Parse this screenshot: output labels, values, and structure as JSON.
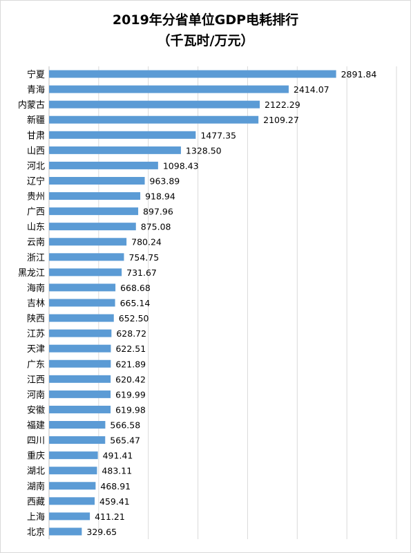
{
  "chart_data": {
    "type": "bar",
    "orientation": "horizontal",
    "title": "2019年分省单位GDP电耗排行",
    "subtitle": "（千瓦时/万元）",
    "categories": [
      "宁夏",
      "青海",
      "内蒙古",
      "新疆",
      "甘肃",
      "山西",
      "河北",
      "辽宁",
      "贵州",
      "广西",
      "山东",
      "云南",
      "浙江",
      "黑龙江",
      "海南",
      "吉林",
      "陕西",
      "江苏",
      "天津",
      "广东",
      "江西",
      "河南",
      "安徽",
      "福建",
      "四川",
      "重庆",
      "湖北",
      "湖南",
      "西藏",
      "上海",
      "北京"
    ],
    "values": [
      2891.84,
      2414.07,
      2122.29,
      2109.27,
      1477.35,
      1328.5,
      1098.43,
      963.89,
      918.94,
      897.96,
      875.08,
      780.24,
      754.75,
      731.67,
      668.68,
      665.14,
      652.5,
      628.72,
      622.51,
      621.89,
      620.42,
      619.99,
      619.98,
      566.58,
      565.47,
      491.41,
      483.11,
      468.91,
      459.41,
      411.21,
      329.65
    ],
    "value_labels": [
      "2891.84",
      "2414.07",
      "2122.29",
      "2109.27",
      "1477.35",
      "1328.50",
      "1098.43",
      "963.89",
      "918.94",
      "897.96",
      "875.08",
      "780.24",
      "754.75",
      "731.67",
      "668.68",
      "665.14",
      "652.50",
      "628.72",
      "622.51",
      "621.89",
      "620.42",
      "619.99",
      "619.98",
      "566.58",
      "565.47",
      "491.41",
      "483.11",
      "468.91",
      "459.41",
      "411.21",
      "329.65"
    ],
    "xlim": [
      0,
      3500
    ],
    "grid": true,
    "bar_color": "#5b9bd5"
  }
}
